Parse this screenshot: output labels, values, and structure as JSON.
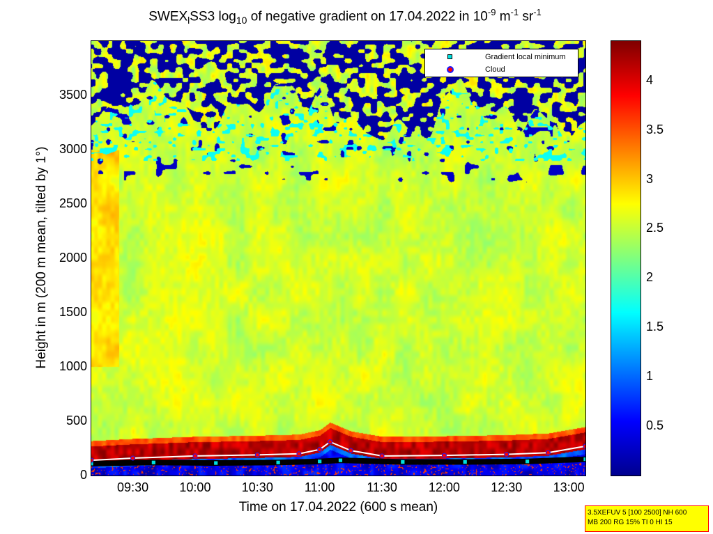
{
  "title": {
    "part1": "SWEX",
    "sub1": "l",
    "part2": "SS3 log",
    "sub2": "10",
    "part3": " of negative gradient on 17.04.2022 in 10",
    "sup1": "-9",
    "part4": " m",
    "sup2": "-1",
    "part5": " sr",
    "sup3": "-1"
  },
  "chart_data": {
    "type": "heatmap",
    "xlabel": "Time on 17.04.2022 (600 s mean)",
    "ylabel": "Height in m (200 m mean, tilted by 1°)",
    "xlim": [
      "09:10",
      "13:08"
    ],
    "ylim": [
      0,
      4000
    ],
    "x_ticks": [
      "09:30",
      "10:00",
      "10:30",
      "11:00",
      "11:30",
      "12:00",
      "12:30",
      "13:00"
    ],
    "y_ticks": [
      "0",
      "500",
      "1000",
      "1500",
      "2000",
      "2500",
      "3000",
      "3500"
    ],
    "colorbar": {
      "ticks": [
        "0.5",
        "1",
        "1.5",
        "2",
        "2.5",
        "3",
        "3.5",
        "4"
      ],
      "range": [
        0,
        4.4
      ],
      "colormap": "jet"
    },
    "field": {
      "approximate_levels": [
        {
          "height_range_m": [
            0,
            120
          ],
          "value": 0.3
        },
        {
          "height_range_m": [
            150,
            330
          ],
          "value": 4.2
        },
        {
          "height_range_m": [
            350,
            1500
          ],
          "value": 2.6
        },
        {
          "height_range_m": [
            1500,
            3300
          ],
          "value": 2.5
        },
        {
          "height_range_m": [
            3500,
            4000
          ],
          "value": 0.2
        }
      ]
    },
    "series": [
      {
        "name": "Gradient local minimum",
        "marker": "square",
        "color": "#00e0e0",
        "x": [
          "09:10",
          "09:40",
          "10:10",
          "10:40",
          "11:00",
          "11:10",
          "11:40",
          "12:10",
          "12:40",
          "13:08"
        ],
        "y": [
          110,
          120,
          115,
          120,
          130,
          140,
          125,
          125,
          130,
          150
        ]
      },
      {
        "name": "Cloud",
        "marker": "circle",
        "color": "#ff0000",
        "x": [
          "09:10",
          "09:30",
          "10:00",
          "10:30",
          "10:50",
          "11:00",
          "11:05",
          "11:15",
          "11:30",
          "12:00",
          "12:30",
          "12:50",
          "13:08"
        ],
        "y": [
          140,
          160,
          180,
          190,
          200,
          240,
          310,
          230,
          180,
          185,
          195,
          210,
          270
        ]
      }
    ]
  },
  "legend": {
    "items": [
      {
        "label": "Gradient local minimum"
      },
      {
        "label": "Cloud"
      }
    ]
  },
  "infobox": {
    "line1": "3.5XEFUV 5 [100 2500] NH 600",
    "line2": "MB 200 RG 15% TI 0 HI 15"
  },
  "colors": {
    "background": "#ffffff",
    "infobox_bg": "#ffff00",
    "infobox_border": "#ff0000"
  }
}
